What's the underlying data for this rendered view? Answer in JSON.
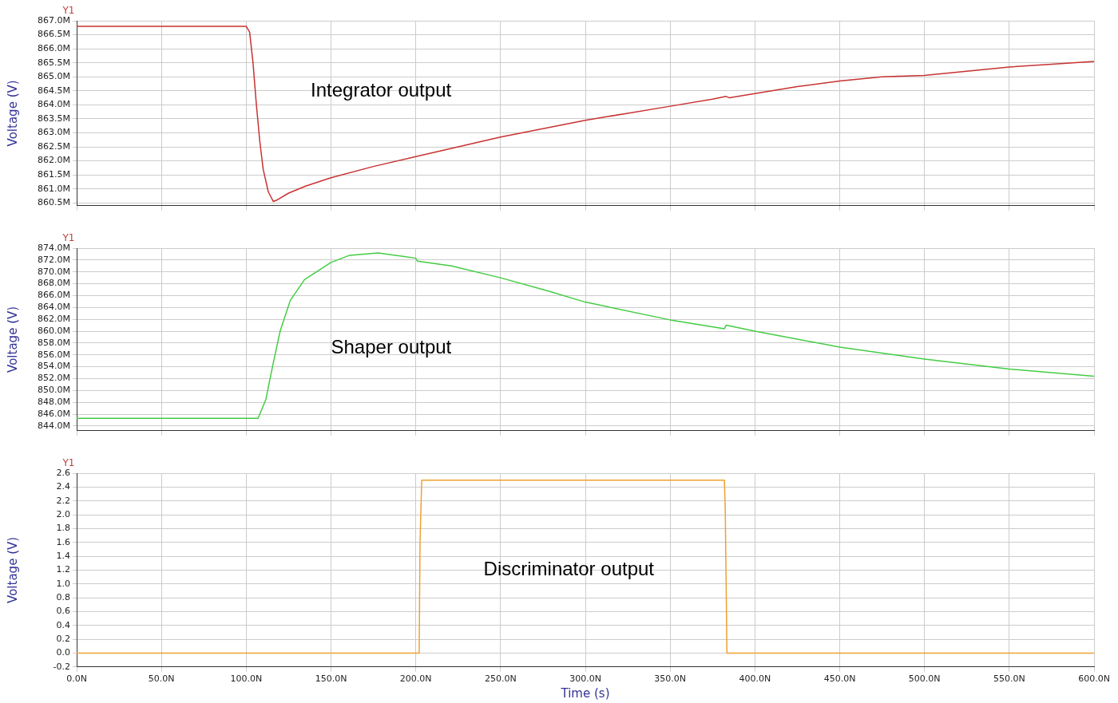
{
  "chart_data": [
    {
      "type": "line",
      "annotations": [
        "Y1"
      ],
      "ylabel": "Voltage (V)",
      "tick_labels": "y",
      "grid": true,
      "x": [
        0,
        100,
        102,
        104,
        106,
        108,
        110,
        113,
        116,
        118,
        125,
        135,
        150,
        175,
        200,
        225,
        250,
        275,
        300,
        325,
        350,
        375,
        383,
        385,
        400,
        425,
        450,
        475,
        500,
        525,
        550,
        575,
        600
      ],
      "series": [
        {
          "name": "Integrator output",
          "color": "#c83232",
          "values": [
            866.8,
            866.8,
            866.6,
            865.5,
            864.0,
            862.7,
            861.7,
            860.9,
            860.55,
            860.6,
            860.85,
            861.1,
            861.4,
            861.8,
            862.15,
            862.5,
            862.85,
            863.15,
            863.45,
            863.7,
            863.95,
            864.2,
            864.3,
            864.25,
            864.4,
            864.65,
            864.85,
            865.0,
            865.05,
            865.2,
            865.35,
            865.45,
            865.55
          ]
        }
      ],
      "xlim": [
        0,
        600
      ],
      "xticks": [
        0,
        50,
        100,
        150,
        200,
        250,
        300,
        350,
        400,
        450,
        500,
        550,
        600
      ],
      "ylim": [
        860.4,
        867.0
      ],
      "yticks": [
        {
          "value": 860.5,
          "label": "860.5M"
        },
        {
          "value": 861,
          "label": "861.0M"
        },
        {
          "value": 861.5,
          "label": "861.5M"
        },
        {
          "value": 862,
          "label": "862.0M"
        },
        {
          "value": 862.5,
          "label": "862.5M"
        },
        {
          "value": 863,
          "label": "863.0M"
        },
        {
          "value": 863.5,
          "label": "863.5M"
        },
        {
          "value": 864,
          "label": "864.0M"
        },
        {
          "value": 864.5,
          "label": "864.5M"
        },
        {
          "value": 865,
          "label": "865.0M"
        },
        {
          "value": 865.5,
          "label": "865.5M"
        },
        {
          "value": 866,
          "label": "866.0M"
        },
        {
          "value": 866.5,
          "label": "866.5M"
        },
        {
          "value": 867,
          "label": "867.0M"
        }
      ]
    },
    {
      "type": "line",
      "annotations": [
        "Y1"
      ],
      "ylabel": "Voltage (V)",
      "tick_labels": "y",
      "grid": true,
      "x": [
        0,
        107,
        111.6,
        115.7,
        120,
        126,
        134.4,
        150,
        161,
        177.8,
        200,
        201,
        221,
        250,
        279,
        300,
        350,
        382,
        383,
        400,
        450,
        500,
        550,
        600
      ],
      "series": [
        {
          "name": "Shaper output",
          "color": "#44cc44",
          "values": [
            845.3,
            845.3,
            848.5,
            854.3,
            860.0,
            865.2,
            868.7,
            871.6,
            872.8,
            873.2,
            872.3,
            871.8,
            871.0,
            869.0,
            866.7,
            864.9,
            861.9,
            860.4,
            861.0,
            860.0,
            857.3,
            855.3,
            853.6,
            852.4
          ]
        }
      ],
      "xlim": [
        0,
        600
      ],
      "xticks": [
        0,
        50,
        100,
        150,
        200,
        250,
        300,
        350,
        400,
        450,
        500,
        550,
        600
      ],
      "ylim": [
        843.2,
        874.0
      ],
      "yticks": [
        {
          "value": 844,
          "label": "844.0M"
        },
        {
          "value": 846,
          "label": "846.0M"
        },
        {
          "value": 848,
          "label": "848.0M"
        },
        {
          "value": 850,
          "label": "850.0M"
        },
        {
          "value": 852,
          "label": "852.0M"
        },
        {
          "value": 854,
          "label": "854.0M"
        },
        {
          "value": 856,
          "label": "856.0M"
        },
        {
          "value": 858,
          "label": "858.0M"
        },
        {
          "value": 860,
          "label": "860.0M"
        },
        {
          "value": 862,
          "label": "862.0M"
        },
        {
          "value": 864,
          "label": "864.0M"
        },
        {
          "value": 866,
          "label": "866.0M"
        },
        {
          "value": 868,
          "label": "868.0M"
        },
        {
          "value": 870,
          "label": "870.0M"
        },
        {
          "value": 872,
          "label": "872.0M"
        },
        {
          "value": 874,
          "label": "874.0M"
        }
      ]
    },
    {
      "type": "line",
      "annotations": [
        "Y1"
      ],
      "ylabel": "Voltage (V)",
      "xlabel": "Time (s)",
      "grid": true,
      "x": [
        0,
        202,
        202.5,
        203.5,
        382,
        382.5,
        383.5,
        600
      ],
      "series": [
        {
          "name": "Discriminator output",
          "color": "#f0a030",
          "values": [
            0,
            0,
            1.6,
            2.5,
            2.5,
            2.1,
            0,
            0
          ]
        }
      ],
      "xlim": [
        0,
        600
      ],
      "xticks": [
        {
          "value": 0,
          "label": "0.0N"
        },
        {
          "value": 50,
          "label": "50.0N"
        },
        {
          "value": 100,
          "label": "100.0N"
        },
        {
          "value": 150,
          "label": "150.0N"
        },
        {
          "value": 200,
          "label": "200.0N"
        },
        {
          "value": 250,
          "label": "250.0N"
        },
        {
          "value": 300,
          "label": "300.0N"
        },
        {
          "value": 350,
          "label": "350.0N"
        },
        {
          "value": 400,
          "label": "400.0N"
        },
        {
          "value": 450,
          "label": "450.0N"
        },
        {
          "value": 500,
          "label": "500.0N"
        },
        {
          "value": 550,
          "label": "550.0N"
        },
        {
          "value": 600,
          "label": "600.0N"
        }
      ],
      "ylim": [
        -0.2,
        2.6
      ],
      "yticks": [
        {
          "value": -0.2,
          "label": "-0.2"
        },
        {
          "value": 0,
          "label": "0.0"
        },
        {
          "value": 0.2,
          "label": "0.2"
        },
        {
          "value": 0.4,
          "label": "0.4"
        },
        {
          "value": 0.6,
          "label": "0.6"
        },
        {
          "value": 0.8,
          "label": "0.8"
        },
        {
          "value": 1.0,
          "label": "1.0"
        },
        {
          "value": 1.2,
          "label": "1.2"
        },
        {
          "value": 1.4,
          "label": "1.4"
        },
        {
          "value": 1.6,
          "label": "1.6"
        },
        {
          "value": 1.8,
          "label": "1.8"
        },
        {
          "value": 2.0,
          "label": "2.0"
        },
        {
          "value": 2.2,
          "label": "2.2"
        },
        {
          "value": 2.4,
          "label": "2.4"
        },
        {
          "value": 2.6,
          "label": "2.6"
        }
      ]
    }
  ]
}
